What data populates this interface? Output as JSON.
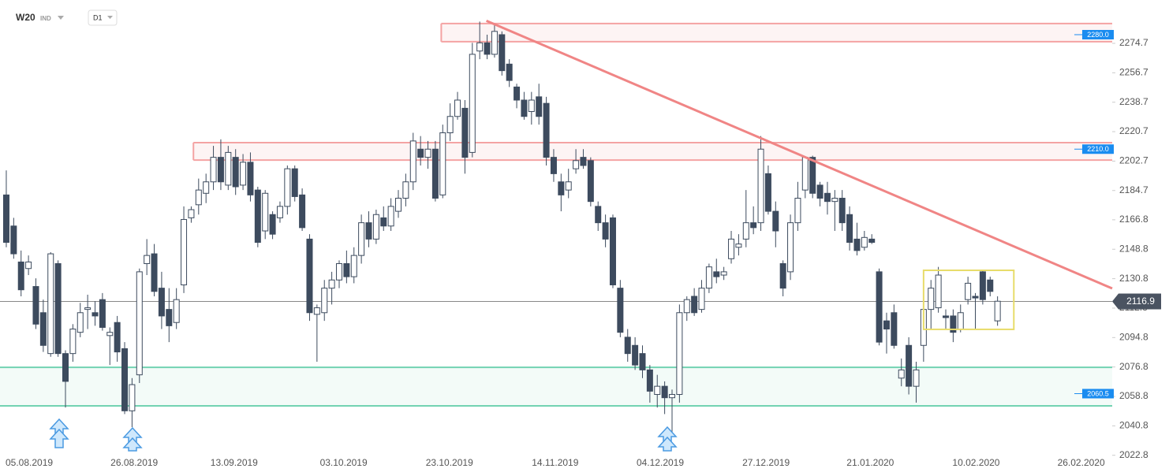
{
  "header": {
    "symbol": "W20",
    "market": "IND",
    "interval": "D1"
  },
  "chart_data": {
    "type": "candlestick",
    "candles": [
      [
        2182,
        2197,
        2150,
        2153
      ],
      [
        2163,
        2168,
        2143,
        2146
      ],
      [
        2141,
        2148,
        2120,
        2124
      ],
      [
        2137,
        2145,
        2133,
        2141
      ],
      [
        2126,
        2131,
        2100,
        2103
      ],
      [
        2110,
        2118,
        2086,
        2090
      ],
      [
        2085,
        2147,
        2083,
        2146
      ],
      [
        2140,
        2142,
        2083,
        2085
      ],
      [
        2085,
        2087,
        2052,
        2068
      ],
      [
        2085,
        2103,
        2080,
        2100
      ],
      [
        2098,
        2116,
        2095,
        2110
      ],
      [
        2112,
        2121,
        2100,
        2113
      ],
      [
        2110,
        2117,
        2102,
        2108
      ],
      [
        2118,
        2122,
        2099,
        2101
      ],
      [
        2096,
        2101,
        2078,
        2098
      ],
      [
        2104,
        2108,
        2080,
        2086
      ],
      [
        2088,
        2092,
        2048,
        2050
      ],
      [
        2050,
        2070,
        2040,
        2066
      ],
      [
        2072,
        2137,
        2067,
        2135
      ],
      [
        2140,
        2155,
        2133,
        2145
      ],
      [
        2146,
        2152,
        2120,
        2123
      ],
      [
        2125,
        2135,
        2100,
        2108
      ],
      [
        2112,
        2125,
        2092,
        2102
      ],
      [
        2104,
        2125,
        2100,
        2118
      ],
      [
        2127,
        2175,
        2122,
        2167
      ],
      [
        2168,
        2175,
        2165,
        2173
      ],
      [
        2176,
        2192,
        2170,
        2185
      ],
      [
        2183,
        2195,
        2177,
        2190
      ],
      [
        2190,
        2212,
        2185,
        2205
      ],
      [
        2205,
        2216,
        2185,
        2190
      ],
      [
        2188,
        2212,
        2185,
        2208
      ],
      [
        2205,
        2210,
        2182,
        2187
      ],
      [
        2188,
        2207,
        2185,
        2202
      ],
      [
        2202,
        2208,
        2178,
        2182
      ],
      [
        2185,
        2187,
        2150,
        2153
      ],
      [
        2160,
        2185,
        2155,
        2183
      ],
      [
        2170,
        2172,
        2155,
        2158
      ],
      [
        2168,
        2178,
        2165,
        2175
      ],
      [
        2175,
        2200,
        2170,
        2198
      ],
      [
        2198,
        2200,
        2178,
        2181
      ],
      [
        2182,
        2186,
        2160,
        2162
      ],
      [
        2155,
        2158,
        2105,
        2110
      ],
      [
        2109,
        2115,
        2080,
        2113
      ],
      [
        2110,
        2130,
        2105,
        2125
      ],
      [
        2125,
        2135,
        2115,
        2130
      ],
      [
        2130,
        2142,
        2125,
        2140
      ],
      [
        2140,
        2148,
        2128,
        2132
      ],
      [
        2132,
        2150,
        2128,
        2145
      ],
      [
        2145,
        2170,
        2140,
        2165
      ],
      [
        2165,
        2172,
        2150,
        2155
      ],
      [
        2155,
        2173,
        2152,
        2170
      ],
      [
        2168,
        2175,
        2160,
        2163
      ],
      [
        2163,
        2180,
        2160,
        2175
      ],
      [
        2172,
        2185,
        2168,
        2180
      ],
      [
        2180,
        2195,
        2175,
        2190
      ],
      [
        2190,
        2220,
        2185,
        2215
      ],
      [
        2210,
        2218,
        2200,
        2205
      ],
      [
        2205,
        2215,
        2198,
        2210
      ],
      [
        2210,
        2215,
        2178,
        2180
      ],
      [
        2182,
        2225,
        2180,
        2220
      ],
      [
        2220,
        2238,
        2215,
        2230
      ],
      [
        2230,
        2245,
        2228,
        2240
      ],
      [
        2235,
        2240,
        2195,
        2205
      ],
      [
        2208,
        2275,
        2205,
        2268
      ],
      [
        2270,
        2288,
        2265,
        2275
      ],
      [
        2275,
        2280,
        2265,
        2268
      ],
      [
        2268,
        2287,
        2266,
        2282
      ],
      [
        2280,
        2282,
        2255,
        2258
      ],
      [
        2262,
        2265,
        2248,
        2252
      ],
      [
        2248,
        2250,
        2235,
        2240
      ],
      [
        2240,
        2245,
        2228,
        2230
      ],
      [
        2233,
        2245,
        2225,
        2240
      ],
      [
        2242,
        2250,
        2225,
        2230
      ],
      [
        2238,
        2242,
        2200,
        2205
      ],
      [
        2205,
        2210,
        2190,
        2195
      ],
      [
        2190,
        2195,
        2172,
        2182
      ],
      [
        2185,
        2198,
        2180,
        2190
      ],
      [
        2198,
        2210,
        2195,
        2203
      ],
      [
        2205,
        2210,
        2198,
        2200
      ],
      [
        2203,
        2205,
        2175,
        2178
      ],
      [
        2175,
        2178,
        2160,
        2165
      ],
      [
        2165,
        2170,
        2150,
        2155
      ],
      [
        2168,
        2170,
        2125,
        2127
      ],
      [
        2125,
        2130,
        2095,
        2098
      ],
      [
        2095,
        2100,
        2080,
        2085
      ],
      [
        2090,
        2095,
        2075,
        2078
      ],
      [
        2085,
        2090,
        2070,
        2075
      ],
      [
        2075,
        2078,
        2055,
        2062
      ],
      [
        2060,
        2072,
        2052,
        2065
      ],
      [
        2065,
        2068,
        2048,
        2058
      ],
      [
        2058,
        2063,
        2037,
        2060
      ],
      [
        2060,
        2115,
        2055,
        2110
      ],
      [
        2110,
        2120,
        2105,
        2118
      ],
      [
        2120,
        2125,
        2108,
        2110
      ],
      [
        2112,
        2130,
        2110,
        2125
      ],
      [
        2125,
        2140,
        2122,
        2138
      ],
      [
        2135,
        2143,
        2128,
        2132
      ],
      [
        2133,
        2138,
        2130,
        2135
      ],
      [
        2143,
        2160,
        2140,
        2155
      ],
      [
        2150,
        2158,
        2145,
        2152
      ],
      [
        2155,
        2185,
        2150,
        2165
      ],
      [
        2165,
        2175,
        2158,
        2162
      ],
      [
        2165,
        2218,
        2160,
        2210
      ],
      [
        2195,
        2200,
        2170,
        2172
      ],
      [
        2172,
        2178,
        2150,
        2160
      ],
      [
        2140,
        2142,
        2120,
        2125
      ],
      [
        2135,
        2170,
        2130,
        2165
      ],
      [
        2165,
        2190,
        2160,
        2180
      ],
      [
        2185,
        2205,
        2180,
        2205
      ],
      [
        2205,
        2206,
        2180,
        2183
      ],
      [
        2188,
        2190,
        2175,
        2180
      ],
      [
        2183,
        2190,
        2170,
        2178
      ],
      [
        2178,
        2185,
        2160,
        2180
      ],
      [
        2180,
        2185,
        2160,
        2165
      ],
      [
        2170,
        2175,
        2148,
        2153
      ],
      [
        2155,
        2165,
        2145,
        2148
      ],
      [
        2150,
        2160,
        2148,
        2156
      ],
      [
        2155,
        2158,
        2152,
        2153
      ],
      [
        2135,
        2137,
        2090,
        2092
      ],
      [
        2105,
        2110,
        2085,
        2100
      ],
      [
        2110,
        2115,
        2088,
        2090
      ],
      [
        2070,
        2082,
        2065,
        2075
      ],
      [
        2090,
        2095,
        2060,
        2065
      ],
      [
        2065,
        2080,
        2055,
        2075
      ],
      [
        2090,
        2115,
        2080,
        2112
      ],
      [
        2112,
        2130,
        2100,
        2125
      ],
      [
        2113,
        2138,
        2110,
        2133
      ],
      [
        2108,
        2112,
        2100,
        2107
      ],
      [
        2108,
        2112,
        2092,
        2098
      ],
      [
        2100,
        2115,
        2098,
        2110
      ],
      [
        2118,
        2132,
        2115,
        2128
      ],
      [
        2120,
        2122,
        2100,
        2119
      ],
      [
        2135,
        2136,
        2115,
        2118
      ],
      [
        2130,
        2132,
        2120,
        2123
      ],
      [
        2105,
        2120,
        2102,
        2117
      ]
    ],
    "xlim": [
      -0.85,
      149.5
    ],
    "xticks": [
      {
        "value": 3.1,
        "label": "05.08.2019"
      },
      {
        "value": 17.3,
        "label": "26.08.2019"
      },
      {
        "value": 30.8,
        "label": "13.09.2019"
      },
      {
        "value": 45.6,
        "label": "03.10.2019"
      },
      {
        "value": 59.9,
        "label": "23.10.2019"
      },
      {
        "value": 74.2,
        "label": "14.11.2019"
      },
      {
        "value": 88.4,
        "label": "04.12.2019"
      },
      {
        "value": 102.7,
        "label": "27.12.2019"
      },
      {
        "value": 116.8,
        "label": "21.01.2020"
      },
      {
        "value": 131.1,
        "label": "10.02.2020"
      },
      {
        "value": 145.3,
        "label": "26.02.2020"
      }
    ],
    "ylim": [
      2021.7,
      2301.2
    ],
    "yticks": [
      2274.7,
      2256.7,
      2238.7,
      2220.7,
      2202.7,
      2184.7,
      2166.8,
      2148.8,
      2130.8,
      2112.8,
      2094.8,
      2076.8,
      2058.8,
      2040.8,
      2022.8
    ],
    "colors": {
      "up": "#ffffff",
      "down": "#3d4b5e",
      "wick": "#3d4b5e"
    },
    "zones": [
      {
        "from": 2275.7,
        "to": 2286.8,
        "start": 58.8,
        "fill": "#fdf4f4",
        "stroke": "#f4a3a3"
      },
      {
        "from": 2203.3,
        "to": 2214.0,
        "start": 25.3,
        "fill": "#fdf4f4",
        "stroke": "#f4a3a3"
      },
      {
        "from": 2053.0,
        "to": 2076.6,
        "start": -0.85,
        "fill": "#f3fbf8",
        "stroke": "#72d3b2"
      }
    ],
    "levels": [
      {
        "value": 2280,
        "label": "2280.0"
      },
      {
        "value": 2210,
        "label": "2210.0"
      },
      {
        "value": 2060.5,
        "label": "2060.5"
      }
    ],
    "level_color": "#1a8cf0",
    "current_price": 2116.9,
    "trendline": {
      "x": [
        64.9,
        149.5
      ],
      "y": [
        2288.5,
        2124.8
      ],
      "color": "#f08585"
    },
    "highlight_box": {
      "x": [
        124,
        136.2
      ],
      "y": [
        2099.8,
        2135.9
      ],
      "color": "#e8dc6a"
    }
  }
}
